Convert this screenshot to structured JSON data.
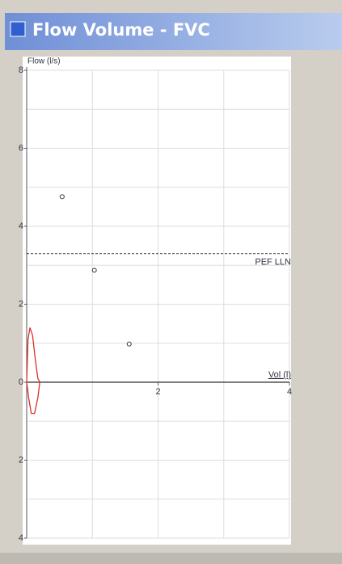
{
  "window": {
    "title": "Flow Volume - FVC"
  },
  "chart_data": {
    "type": "scatter",
    "y_label": "Flow (l/s)",
    "x_label": "Vol (l)",
    "xlim": [
      0,
      4
    ],
    "ylim": [
      -4,
      8
    ],
    "xticks": [
      2,
      4
    ],
    "yticks": [
      8,
      6,
      4,
      2,
      0,
      {
        "value": -2,
        "label": "2"
      },
      {
        "value": -4,
        "label": "4"
      }
    ],
    "x_grid": [
      1,
      2,
      3,
      4
    ],
    "y_grid": [
      -4,
      -3,
      -2,
      -1,
      1,
      2,
      3,
      4,
      5,
      6,
      7,
      8
    ],
    "reference_line": {
      "label": "PEF LLN",
      "value": 3.3
    },
    "points": {
      "color": "#333333",
      "x": [
        0.54,
        1.03,
        1.56
      ],
      "values": [
        4.76,
        2.87,
        0.98
      ]
    },
    "curve": {
      "color": "#d9302a",
      "x": [
        0,
        0.02,
        0.05,
        0.09,
        0.13,
        0.17,
        0.2,
        0.17,
        0.12,
        0.07,
        0.03,
        0
      ],
      "values": [
        0,
        1.1,
        1.4,
        1.2,
        0.6,
        0.1,
        0,
        -0.4,
        -0.8,
        -0.8,
        -0.4,
        0
      ]
    }
  }
}
